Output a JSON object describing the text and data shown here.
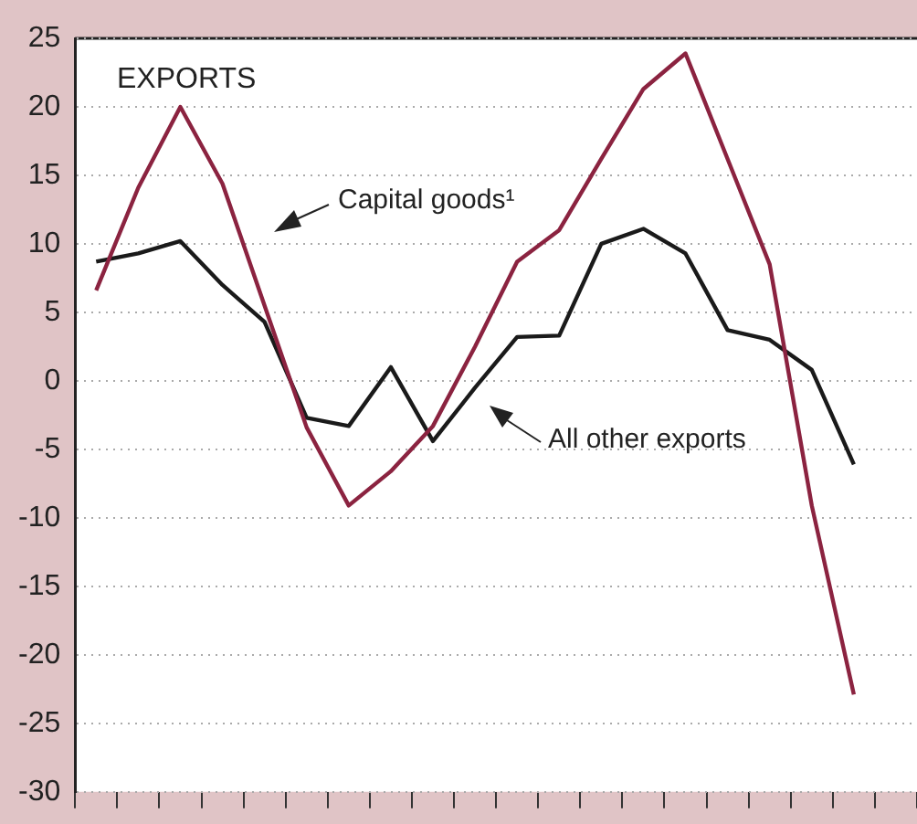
{
  "chart_data": {
    "type": "line",
    "categories": [
      null,
      null,
      null,
      null,
      null,
      null,
      null,
      null,
      null,
      null,
      null,
      null,
      null,
      null,
      null,
      null,
      null,
      null,
      null,
      null
    ],
    "series": [
      {
        "color": "#8b2340",
        "values": [
          6.6,
          14.1,
          20.0,
          14.4,
          5.5,
          -3.4,
          -9.1,
          -6.6,
          -3.3,
          2.5,
          8.7,
          11.0,
          16.2,
          21.3,
          23.9,
          16.2,
          8.5,
          -9.1,
          -22.9,
          null
        ]
      },
      {
        "color": "#1a1a1a",
        "values": [
          8.7,
          9.3,
          10.2,
          7.0,
          4.3,
          -2.7,
          -3.3,
          1.0,
          -4.4,
          -0.5,
          3.2,
          3.3,
          10.0,
          11.1,
          9.3,
          3.7,
          3.0,
          0.8,
          -6.1,
          null
        ]
      }
    ],
    "ylim": [
      -30,
      25
    ],
    "yticks": [
      -30,
      -25,
      -20,
      -15,
      -10,
      -5,
      0,
      5,
      10,
      15,
      20,
      25
    ],
    "annotations": [
      "EXPORTS",
      "Capital goods¹",
      "All other exports"
    ],
    "grid": "y",
    "legend": false,
    "tick_labels": "y",
    "marker": "none",
    "line_style": "solid"
  }
}
